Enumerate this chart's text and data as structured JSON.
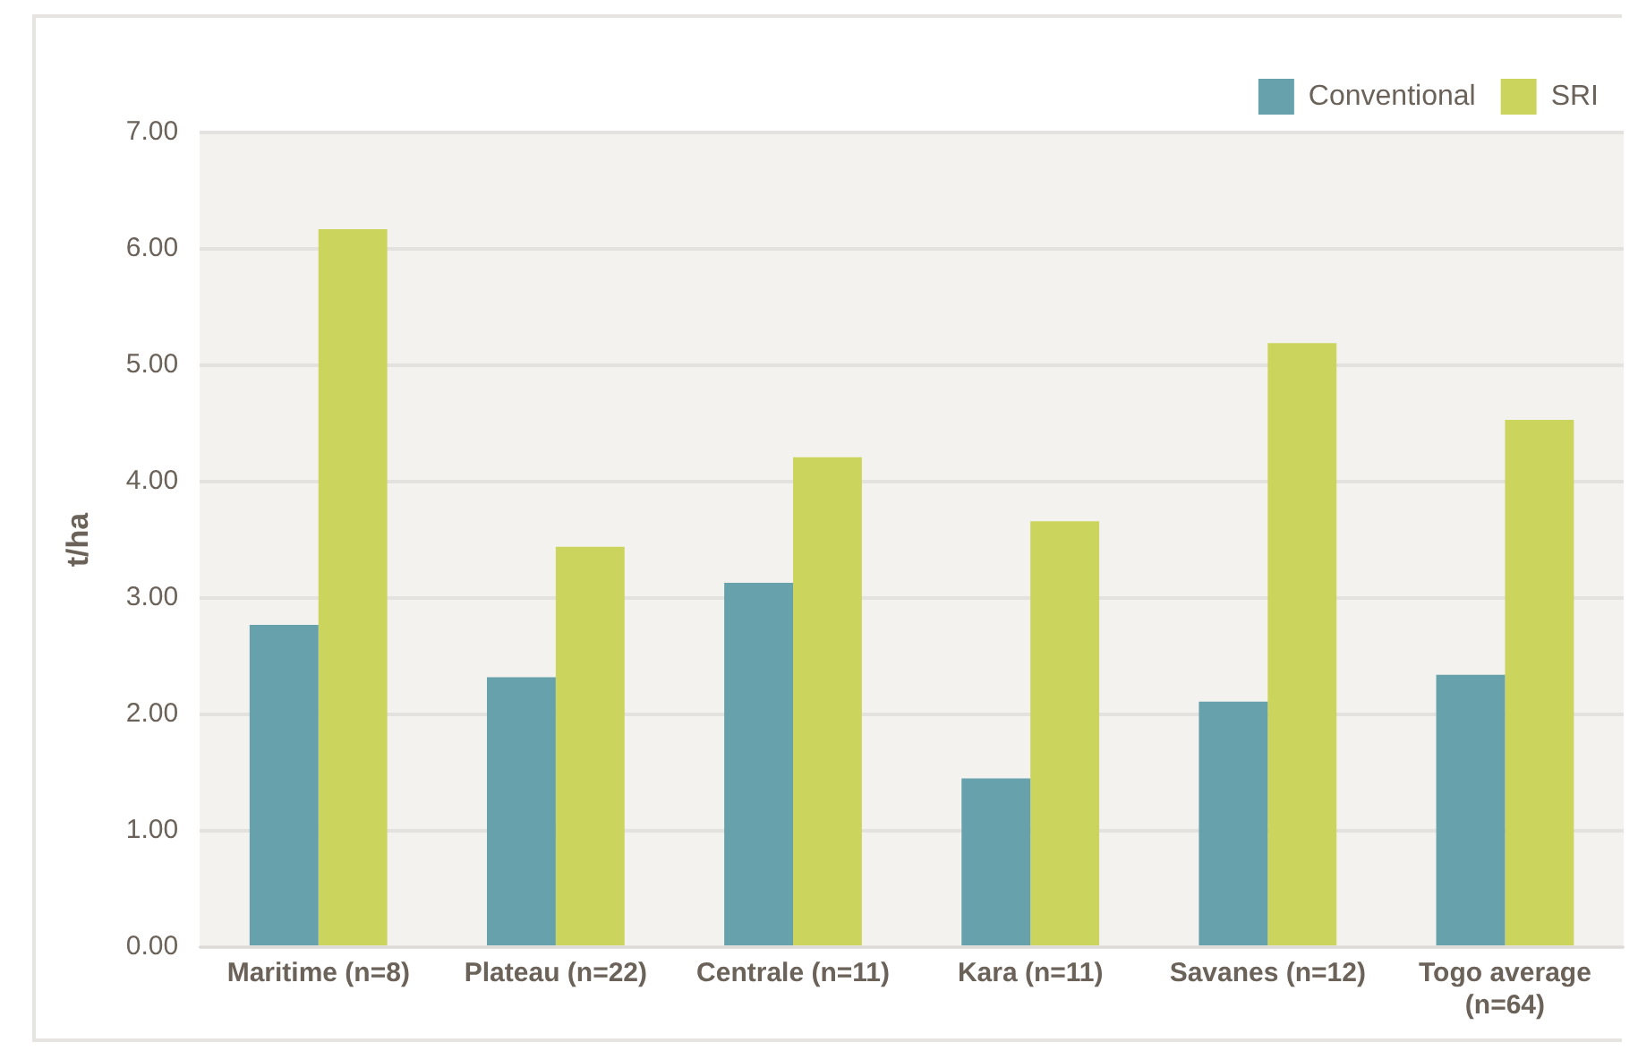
{
  "chart_data": {
    "type": "bar",
    "ylabel": "t/ha",
    "categories": [
      "Maritime (n=8)",
      "Plateau (n=22)",
      "Centrale (n=11)",
      "Kara (n=11)",
      "Savanes (n=12)",
      "Togo average (n=64)"
    ],
    "series": [
      {
        "name": "Conventional",
        "color": "#67a1ac",
        "values": [
          2.77,
          2.32,
          3.13,
          1.45,
          2.11,
          2.34
        ]
      },
      {
        "name": "SRI",
        "color": "#cbd55e",
        "values": [
          6.17,
          3.44,
          4.21,
          3.66,
          5.19,
          4.53
        ]
      }
    ],
    "ylim": [
      0,
      7
    ],
    "yticks": [
      {
        "value": 0,
        "label": "0.00"
      },
      {
        "value": 1,
        "label": "1.00"
      },
      {
        "value": 2,
        "label": "2.00"
      },
      {
        "value": 3,
        "label": "3.00"
      },
      {
        "value": 4,
        "label": "4.00"
      },
      {
        "value": 5,
        "label": "5.00"
      },
      {
        "value": 6,
        "label": "6.00"
      },
      {
        "value": 7,
        "label": "7.00"
      }
    ],
    "grid": "y",
    "legend": "top right"
  }
}
